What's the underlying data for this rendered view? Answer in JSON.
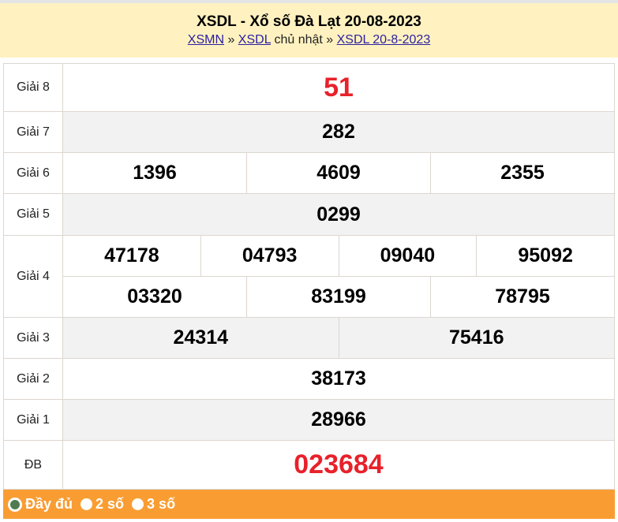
{
  "header": {
    "title": "XSDL - Xổ số Đà Lạt 20-08-2023",
    "crumb1": "XSMN",
    "sep1": " » ",
    "crumb2": "XSDL",
    "mid": " chủ nhật » ",
    "crumb3": "XSDL 20-8-2023"
  },
  "prizes": {
    "g8": {
      "label": "Giải 8",
      "nums": [
        "51"
      ]
    },
    "g7": {
      "label": "Giải 7",
      "nums": [
        "282"
      ]
    },
    "g6": {
      "label": "Giải 6",
      "nums": [
        "1396",
        "4609",
        "2355"
      ]
    },
    "g5": {
      "label": "Giải 5",
      "nums": [
        "0299"
      ]
    },
    "g4": {
      "label": "Giải 4",
      "nums": [
        "47178",
        "04793",
        "09040",
        "95092",
        "03320",
        "83199",
        "78795"
      ]
    },
    "g3": {
      "label": "Giải 3",
      "nums": [
        "24314",
        "75416"
      ]
    },
    "g2": {
      "label": "Giải 2",
      "nums": [
        "38173"
      ]
    },
    "g1": {
      "label": "Giải 1",
      "nums": [
        "28966"
      ]
    },
    "db": {
      "label": "ĐB",
      "nums": [
        "023684"
      ]
    }
  },
  "footer": {
    "options": [
      {
        "label": "Đầy đủ",
        "selected": true
      },
      {
        "label": "2 số",
        "selected": false
      },
      {
        "label": "3 số",
        "selected": false
      }
    ]
  },
  "colors": {
    "header_bg": "#fff2c0",
    "footer_bg": "#f99d33",
    "highlight": "#e8212a"
  }
}
